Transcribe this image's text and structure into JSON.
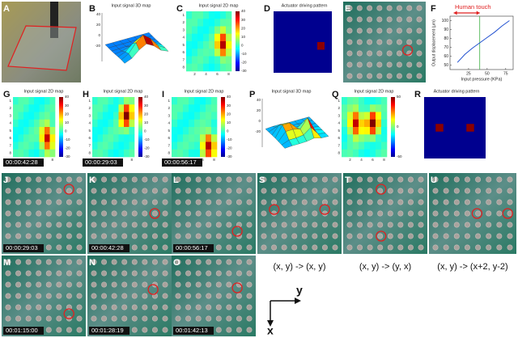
{
  "panels": [
    {
      "label": "A"
    },
    {
      "label": "B",
      "title": "Input signal 3D map"
    },
    {
      "label": "C",
      "title": "Input signal 2D map"
    },
    {
      "label": "D",
      "title": "Actuator driving pattern"
    },
    {
      "label": "E"
    },
    {
      "label": "F",
      "annotation": "Human touch",
      "x_label": "Input pressure (KPa)",
      "y_label": "Output displacement (μm)",
      "x": [
        10,
        20,
        30,
        40,
        50,
        60,
        70,
        80
      ],
      "y": [
        53,
        62,
        69,
        75,
        81,
        87,
        94,
        100
      ],
      "xlim": [
        0,
        85
      ],
      "ylim": [
        45,
        105
      ],
      "xticks": [
        25,
        50,
        75
      ],
      "yticks": [
        50,
        60,
        70,
        80,
        90,
        100
      ],
      "touch_range": [
        5,
        40
      ]
    },
    {
      "label": "G",
      "title": "Input signal 2D map",
      "timestamp": "00:00:42:28"
    },
    {
      "label": "H",
      "title": "Input signal 2D map",
      "timestamp": "00:00:29:03"
    },
    {
      "label": "I",
      "title": "Input signal 2D map",
      "timestamp": "00:00:56:17"
    },
    {
      "label": "P",
      "title": "Input signal 3D map"
    },
    {
      "label": "Q",
      "title": "Input signal 2D map"
    },
    {
      "label": "R",
      "title": "Actuator driving pattern"
    },
    {
      "label": "J",
      "timestamp": "00:00:29:03"
    },
    {
      "label": "K",
      "timestamp": "00:00:42:28"
    },
    {
      "label": "L",
      "timestamp": "00:00:56:17"
    },
    {
      "label": "S",
      "mapping": "(x, y) -> (x, y)"
    },
    {
      "label": "T",
      "mapping": "(x, y) -> (y, x)"
    },
    {
      "label": "U",
      "mapping": "(x, y) -> (x+2, y-2)"
    },
    {
      "label": "M",
      "timestamp": "00:01:15:00"
    },
    {
      "label": "N",
      "timestamp": "00:01:28:19"
    },
    {
      "label": "O",
      "timestamp": "00:01:42:13"
    }
  ],
  "heatmap_scale": {
    "xticks": [
      2,
      4,
      6,
      8
    ],
    "yticks": [
      1,
      2,
      3,
      4,
      5,
      6,
      7,
      8
    ],
    "colorbar": [
      40,
      30,
      20,
      10,
      0,
      -10,
      -20,
      -30
    ],
    "wide_colorbar": [
      50,
      0,
      -50
    ]
  },
  "surface_ticks": [
    40,
    20,
    0,
    -20
  ],
  "axes_labels": {
    "y": "y",
    "x": "x"
  }
}
